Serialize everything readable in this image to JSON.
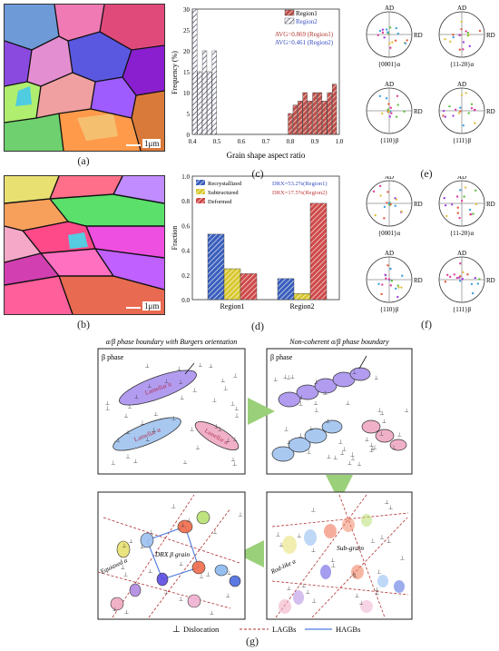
{
  "captions": [
    "(a)",
    "(b)",
    "(c)",
    "(d)",
    "(e)",
    "(f)",
    "(g)"
  ],
  "scale_label": "1μm",
  "chart_c": {
    "type": "bar",
    "title": "",
    "xlabel": "Grain shape aspect ratio",
    "ylabel": "Frequency (%)",
    "xlim": [
      0.4,
      1.0
    ],
    "ylim": [
      0,
      30
    ],
    "legend": [
      "Region1",
      "Region2"
    ],
    "avg1": "AVG=0.869 (Region1)",
    "avg2": "AVG=0.461 (Region2)",
    "xticks": [
      "0.4",
      "0.5",
      "0.6",
      "0.7",
      "0.8",
      "0.9",
      "1.0"
    ],
    "yticks": [
      "0",
      "5",
      "10",
      "15",
      "20",
      "25",
      "30"
    ]
  },
  "chart_d": {
    "ylabel": "Fraction",
    "legend": [
      "Recrystallized",
      "Subtructured",
      "Deformed"
    ],
    "drx1": "DRX=53.2%(Region1)",
    "drx2": "DRX=17.5%(Region2)",
    "yticks": [
      "0.0",
      "0.2",
      "0.4",
      "0.6",
      "0.8",
      "1.0"
    ]
  },
  "chart_data": [
    {
      "type": "bar",
      "title": "",
      "xlabel": "Grain shape aspect ratio",
      "ylabel": "Frequency (%)",
      "ylim": [
        0,
        30
      ],
      "series": [
        {
          "name": "Region1",
          "x": [
            0.8,
            0.82,
            0.84,
            0.86,
            0.88,
            0.9,
            0.92,
            0.94,
            0.96,
            0.98
          ],
          "values": [
            5,
            7,
            8,
            10,
            8,
            10,
            10,
            8,
            10,
            12
          ]
        },
        {
          "name": "Region2",
          "x": [
            0.41,
            0.43,
            0.45,
            0.47,
            0.49
          ],
          "values": [
            30,
            15,
            20,
            15,
            20
          ]
        }
      ]
    },
    {
      "type": "bar",
      "ylabel": "Fraction",
      "ylim": [
        0,
        1.0
      ],
      "categories": [
        "Region1",
        "Region2"
      ],
      "series": [
        {
          "name": "Recrystallized",
          "values": [
            0.53,
            0.17
          ]
        },
        {
          "name": "Subtructured",
          "values": [
            0.25,
            0.05
          ]
        },
        {
          "name": "Deformed",
          "values": [
            0.21,
            0.78
          ]
        }
      ]
    }
  ],
  "pole_e": {
    "ad": "AD",
    "rd": "RD",
    "labels": [
      "{0001}α",
      "{11-20}α",
      "{110}β",
      "{111}β"
    ]
  },
  "pole_f": {
    "ad": "AD",
    "rd": "RD",
    "labels": [
      "{0001}α",
      "{11-20}α",
      "{110}β",
      "{111}β"
    ]
  },
  "schematic": {
    "title_left": "α/β phase boundary with Burgers orientation",
    "title_right": "Non-coherent α/β phase boundary",
    "beta1": "β phase",
    "beta2": "β phase",
    "lam1": "Lamellar α",
    "lam2": "Lamellar α",
    "lam3": "Lamellar α",
    "subgrain": "Sub-grain",
    "rodlike": "Rod-like α",
    "drx": "DRX β grain",
    "equiaxed": "Equiaxed α",
    "legend_dislocation": "Dislocation",
    "legend_lagb": "LAGBs",
    "legend_hagb": "HAGBs"
  },
  "colors": {
    "region1": "#a0362c",
    "region2": "#4a5fc0",
    "recryst": "#3a5fbd",
    "subs": "#d4c236",
    "deformed": "#c94a4a"
  }
}
